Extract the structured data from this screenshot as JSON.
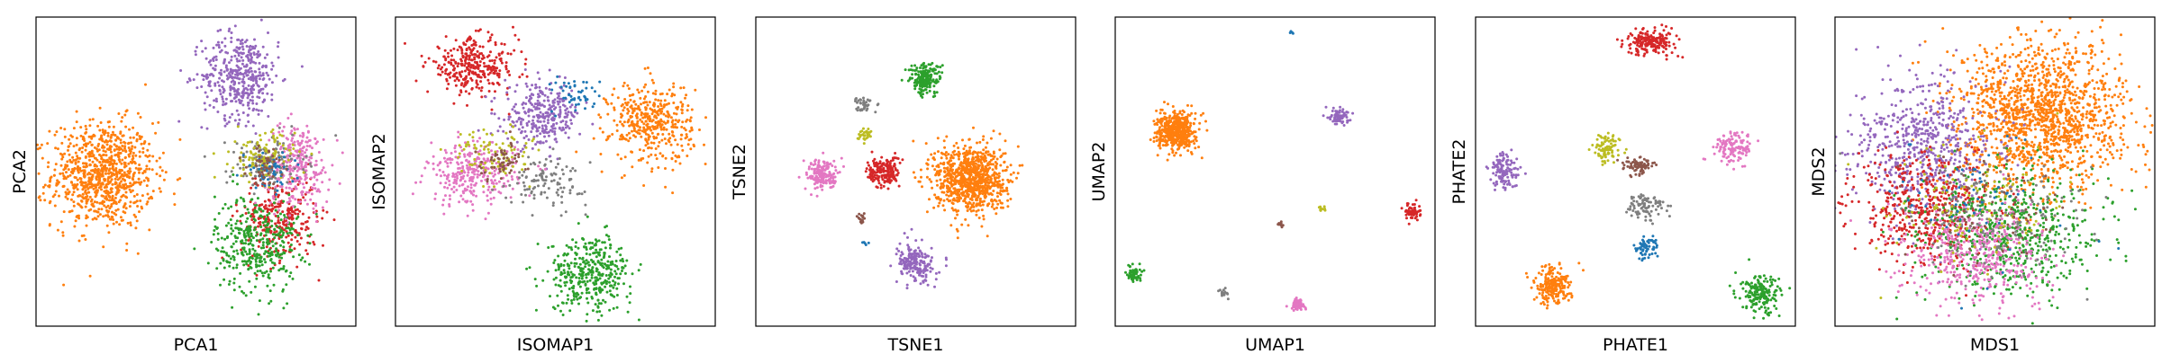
{
  "chart_data": [
    {
      "type": "scatter",
      "xlabel": "PCA1",
      "ylabel": "PCA2",
      "xlim": [
        0,
        100
      ],
      "ylim": [
        0,
        100
      ],
      "grid": false,
      "ticks": false,
      "clusters": [
        {
          "color": "#ff7f0e",
          "center": [
            21,
            49
          ],
          "spread": [
            8,
            8.5
          ],
          "n": 900
        },
        {
          "color": "#9467bd",
          "center": [
            64,
            81
          ],
          "spread": [
            6,
            7
          ],
          "n": 420
        },
        {
          "color": "#d62728",
          "center": [
            76,
            35
          ],
          "spread": [
            6,
            7
          ],
          "n": 300
        },
        {
          "color": "#2ca02c",
          "center": [
            69,
            27
          ],
          "spread": [
            6.5,
            8
          ],
          "n": 380
        },
        {
          "color": "#e377c2",
          "center": [
            82,
            52
          ],
          "spread": [
            5,
            7
          ],
          "n": 280
        },
        {
          "color": "#7f7f7f",
          "center": [
            72,
            53
          ],
          "spread": [
            6,
            4
          ],
          "n": 140
        },
        {
          "color": "#bcbd22",
          "center": [
            71,
            55
          ],
          "spread": [
            5,
            4
          ],
          "n": 110
        },
        {
          "color": "#1f77b4",
          "center": [
            73,
            50
          ],
          "spread": [
            4,
            3
          ],
          "n": 60
        },
        {
          "color": "#8c564b",
          "center": [
            72,
            52
          ],
          "spread": [
            3,
            3
          ],
          "n": 50
        }
      ]
    },
    {
      "type": "scatter",
      "xlabel": "ISOMAP1",
      "ylabel": "ISOMAP2",
      "xlim": [
        0,
        100
      ],
      "ylim": [
        0,
        100
      ],
      "grid": false,
      "ticks": false,
      "clusters": [
        {
          "color": "#d62728",
          "center": [
            24,
            84
          ],
          "spread": [
            7,
            4.5
          ],
          "n": 320
        },
        {
          "color": "#9467bd",
          "center": [
            46,
            68
          ],
          "spread": [
            6,
            5
          ],
          "n": 300
        },
        {
          "color": "#ff7f0e",
          "center": [
            80,
            66
          ],
          "spread": [
            6.5,
            6.5
          ],
          "n": 420
        },
        {
          "color": "#e377c2",
          "center": [
            24,
            49
          ],
          "spread": [
            7,
            5
          ],
          "n": 300
        },
        {
          "color": "#2ca02c",
          "center": [
            61,
            17
          ],
          "spread": [
            6.5,
            6
          ],
          "n": 380
        },
        {
          "color": "#7f7f7f",
          "center": [
            48,
            47
          ],
          "spread": [
            6,
            4
          ],
          "n": 110
        },
        {
          "color": "#bcbd22",
          "center": [
            30,
            56
          ],
          "spread": [
            6,
            4
          ],
          "n": 90
        },
        {
          "color": "#8c564b",
          "center": [
            33,
            53
          ],
          "spread": [
            4,
            3
          ],
          "n": 60
        },
        {
          "color": "#1f77b4",
          "center": [
            57,
            75
          ],
          "spread": [
            4,
            3
          ],
          "n": 50
        }
      ]
    },
    {
      "type": "scatter",
      "xlabel": "TSNE1",
      "ylabel": "TSNE2",
      "xlim": [
        0,
        100
      ],
      "ylim": [
        0,
        100
      ],
      "grid": false,
      "ticks": false,
      "clusters": [
        {
          "color": "#ff7f0e",
          "center": [
            67,
            48
          ],
          "spread": [
            5.5,
            5.5
          ],
          "n": 900
        },
        {
          "color": "#2ca02c",
          "center": [
            53,
            80
          ],
          "spread": [
            2.5,
            2.5
          ],
          "n": 200
        },
        {
          "color": "#d62728",
          "center": [
            40,
            50
          ],
          "spread": [
            2.5,
            2.5
          ],
          "n": 180
        },
        {
          "color": "#e377c2",
          "center": [
            21,
            49
          ],
          "spread": [
            2.5,
            2.5
          ],
          "n": 180
        },
        {
          "color": "#9467bd",
          "center": [
            50,
            20
          ],
          "spread": [
            3,
            3
          ],
          "n": 200
        },
        {
          "color": "#7f7f7f",
          "center": [
            34,
            72
          ],
          "spread": [
            1.3,
            1.3
          ],
          "n": 40
        },
        {
          "color": "#bcbd22",
          "center": [
            34,
            62
          ],
          "spread": [
            1,
            1
          ],
          "n": 30
        },
        {
          "color": "#8c564b",
          "center": [
            33,
            35
          ],
          "spread": [
            0.8,
            0.8
          ],
          "n": 15
        },
        {
          "color": "#1f77b4",
          "center": [
            34,
            27
          ],
          "spread": [
            0.5,
            0.5
          ],
          "n": 5
        }
      ]
    },
    {
      "type": "scatter",
      "xlabel": "UMAP1",
      "ylabel": "UMAP2",
      "xlim": [
        0,
        100
      ],
      "ylim": [
        0,
        100
      ],
      "grid": false,
      "ticks": false,
      "clusters": [
        {
          "color": "#ff7f0e",
          "center": [
            19,
            63
          ],
          "spread": [
            3,
            3
          ],
          "n": 500
        },
        {
          "color": "#9467bd",
          "center": [
            70,
            68
          ],
          "spread": [
            1.5,
            1.5
          ],
          "n": 80
        },
        {
          "color": "#d62728",
          "center": [
            93,
            37
          ],
          "spread": [
            1.2,
            1.2
          ],
          "n": 60
        },
        {
          "color": "#2ca02c",
          "center": [
            6,
            17
          ],
          "spread": [
            1.2,
            1.2
          ],
          "n": 60
        },
        {
          "color": "#e377c2",
          "center": [
            57,
            7
          ],
          "spread": [
            1.2,
            1.2
          ],
          "n": 50
        },
        {
          "color": "#7f7f7f",
          "center": [
            34,
            11
          ],
          "spread": [
            0.7,
            0.7
          ],
          "n": 15
        },
        {
          "color": "#bcbd22",
          "center": [
            65,
            38
          ],
          "spread": [
            0.6,
            0.6
          ],
          "n": 12
        },
        {
          "color": "#8c564b",
          "center": [
            52,
            33
          ],
          "spread": [
            0.5,
            0.5
          ],
          "n": 8
        },
        {
          "color": "#1f77b4",
          "center": [
            55,
            95
          ],
          "spread": [
            0.3,
            0.3
          ],
          "n": 4
        }
      ]
    },
    {
      "type": "scatter",
      "xlabel": "PHATE1",
      "ylabel": "PHATE2",
      "xlim": [
        0,
        100
      ],
      "ylim": [
        0,
        100
      ],
      "grid": false,
      "ticks": false,
      "clusters": [
        {
          "color": "#d62728",
          "center": [
            55,
            92
          ],
          "spread": [
            4,
            2
          ],
          "n": 200
        },
        {
          "color": "#9467bd",
          "center": [
            9,
            50
          ],
          "spread": [
            2.5,
            3
          ],
          "n": 120
        },
        {
          "color": "#e377c2",
          "center": [
            81,
            58
          ],
          "spread": [
            3,
            2.5
          ],
          "n": 130
        },
        {
          "color": "#bcbd22",
          "center": [
            41,
            57
          ],
          "spread": [
            2,
            2.5
          ],
          "n": 90
        },
        {
          "color": "#8c564b",
          "center": [
            51,
            52
          ],
          "spread": [
            2.5,
            1.5
          ],
          "n": 80
        },
        {
          "color": "#7f7f7f",
          "center": [
            53,
            39
          ],
          "spread": [
            3,
            2
          ],
          "n": 90
        },
        {
          "color": "#1f77b4",
          "center": [
            53,
            25
          ],
          "spread": [
            2,
            2
          ],
          "n": 60
        },
        {
          "color": "#ff7f0e",
          "center": [
            24,
            13
          ],
          "spread": [
            3,
            3
          ],
          "n": 200
        },
        {
          "color": "#2ca02c",
          "center": [
            89,
            10
          ],
          "spread": [
            3,
            3
          ],
          "n": 180
        }
      ]
    },
    {
      "type": "scatter",
      "xlabel": "MDS1",
      "ylabel": "MDS2",
      "xlim": [
        0,
        100
      ],
      "ylim": [
        0,
        100
      ],
      "grid": false,
      "ticks": false,
      "clusters": [
        {
          "color": "#ff7f0e",
          "center": [
            65,
            68
          ],
          "spread": [
            13,
            12
          ],
          "n": 1500
        },
        {
          "color": "#9467bd",
          "center": [
            28,
            58
          ],
          "spread": [
            11,
            11
          ],
          "n": 600
        },
        {
          "color": "#d62728",
          "center": [
            28,
            38
          ],
          "spread": [
            11,
            9
          ],
          "n": 500
        },
        {
          "color": "#2ca02c",
          "center": [
            55,
            30
          ],
          "spread": [
            14,
            10
          ],
          "n": 600
        },
        {
          "color": "#e377c2",
          "center": [
            45,
            23
          ],
          "spread": [
            11,
            8
          ],
          "n": 450
        },
        {
          "color": "#7f7f7f",
          "center": [
            50,
            35
          ],
          "spread": [
            14,
            10
          ],
          "n": 150
        },
        {
          "color": "#bcbd22",
          "center": [
            40,
            38
          ],
          "spread": [
            14,
            10
          ],
          "n": 120
        },
        {
          "color": "#8c564b",
          "center": [
            45,
            38
          ],
          "spread": [
            14,
            10
          ],
          "n": 80
        },
        {
          "color": "#1f77b4",
          "center": [
            45,
            40
          ],
          "spread": [
            14,
            10
          ],
          "n": 60
        }
      ]
    }
  ]
}
